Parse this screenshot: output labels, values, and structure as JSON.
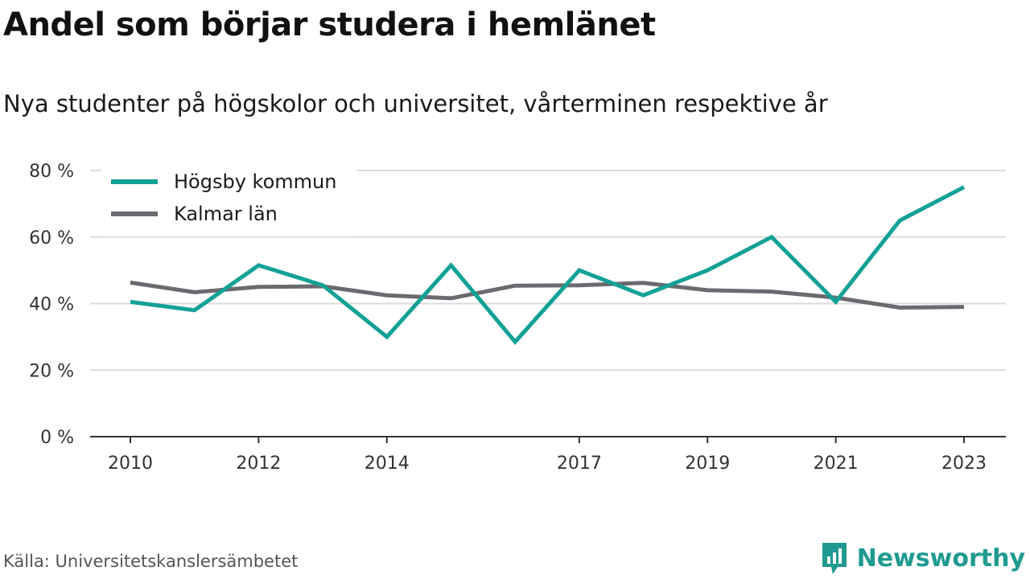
{
  "title": "Andel som börjar studera i hemlänet",
  "subtitle": "Nya studenter på högskolor och universitet, vårterminen respektive år",
  "source": "Källa: Universitetskanslersämbetet",
  "brand": {
    "name": "Newsworthy",
    "icon": "newsworthy-logo-icon",
    "color": "#1f9a90"
  },
  "chart_data": {
    "type": "line",
    "x": [
      2010,
      2011,
      2012,
      2013,
      2014,
      2015,
      2016,
      2017,
      2018,
      2019,
      2020,
      2021,
      2022,
      2023
    ],
    "x_ticks": [
      "2010",
      "2012",
      "2014",
      "2017",
      "2019",
      "2021",
      "2023"
    ],
    "y_ticks": [
      "0 %",
      "20 %",
      "40 %",
      "60 %",
      "80 %"
    ],
    "ylim": [
      0,
      80
    ],
    "grid": true,
    "legend_position": "top-left",
    "series": [
      {
        "name": "Högsby kommun",
        "color": "#13a196",
        "values": [
          40.5,
          38,
          51.5,
          45.5,
          30,
          51.5,
          28.5,
          50,
          42.5,
          50,
          60,
          40.5,
          65,
          75
        ]
      },
      {
        "name": "Kalmar län",
        "color": "#6b6a70",
        "values": [
          46.3,
          43.4,
          45,
          45.2,
          42.5,
          41.6,
          45.4,
          45.5,
          46.2,
          44,
          43.6,
          41.8,
          38.8,
          39
        ]
      }
    ]
  }
}
